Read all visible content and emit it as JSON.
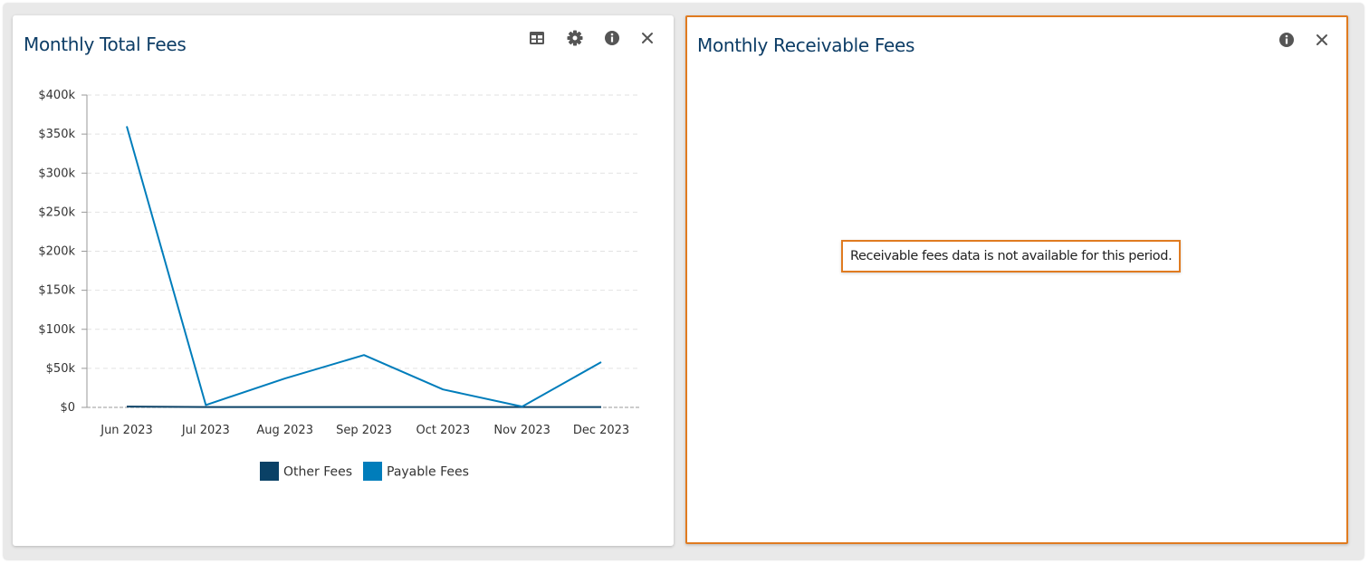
{
  "left_widget": {
    "title": "Monthly Total Fees",
    "tools": [
      {
        "name": "table-icon"
      },
      {
        "name": "gear-icon"
      },
      {
        "name": "info-icon"
      },
      {
        "name": "close-icon"
      }
    ]
  },
  "right_widget": {
    "title": "Monthly Receivable Fees",
    "message": "Receivable fees data is not available for this period.",
    "tools": [
      {
        "name": "info-icon"
      },
      {
        "name": "close-icon"
      }
    ]
  },
  "colors": {
    "title": "#0d3d66",
    "highlight_border": "#e07b20",
    "other_fees": "#0a4166",
    "payable_fees": "#007dbb"
  },
  "chart_data": {
    "type": "line",
    "categories": [
      "Jun 2023",
      "Jul 2023",
      "Aug 2023",
      "Sep 2023",
      "Oct 2023",
      "Nov 2023",
      "Dec 2023"
    ],
    "y_ticks": [
      "$0",
      "$50k",
      "$100k",
      "$150k",
      "$200k",
      "$250k",
      "$300k",
      "$350k",
      "$400k"
    ],
    "ylim": [
      0,
      400000
    ],
    "grid": true,
    "legend_position": "bottom",
    "series": [
      {
        "name": "Other Fees",
        "color": "#0a4166",
        "values": [
          1000,
          500,
          500,
          500,
          500,
          500,
          500
        ]
      },
      {
        "name": "Payable Fees",
        "color": "#007dbb",
        "values": [
          360000,
          3000,
          37000,
          67000,
          23000,
          1000,
          58000
        ]
      }
    ]
  }
}
